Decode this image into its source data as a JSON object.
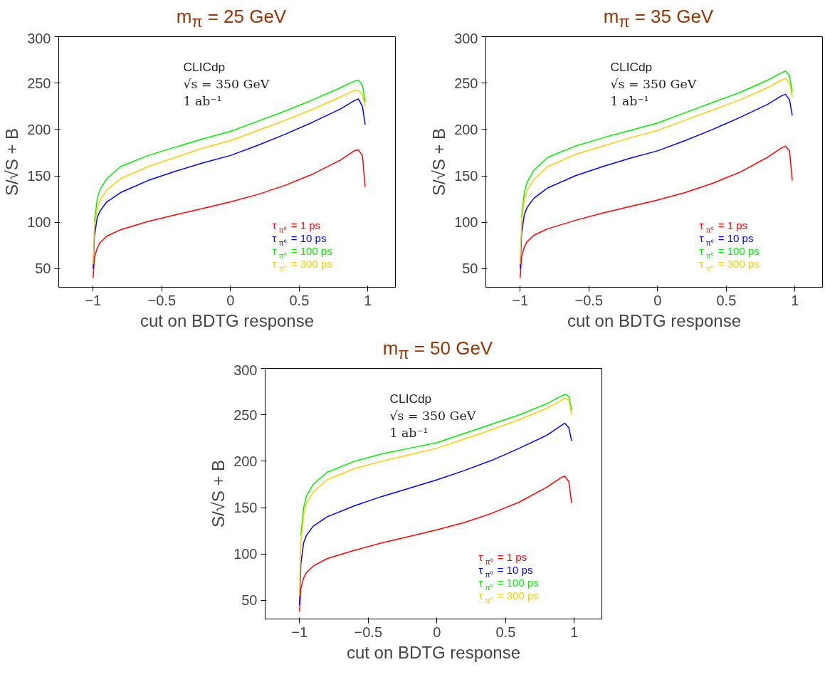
{
  "chart_data": [
    {
      "type": "line",
      "title": "m$_{π}$ = 25 GeV",
      "xlabel": "cut on BDTG response",
      "ylabel": "S/√S + B",
      "annotations": [
        "CLICdp",
        "√s = 350 GeV",
        "1 ab⁻¹"
      ],
      "xlim": [
        -1.25,
        1.2
      ],
      "ylim": [
        30,
        300
      ],
      "xticks": [
        -1,
        -0.5,
        0,
        0.5,
        1
      ],
      "yticks": [
        50,
        100,
        150,
        200,
        250,
        300
      ],
      "grid": false,
      "legend": "bottom",
      "x": [
        -1,
        -0.99,
        -0.97,
        -0.95,
        -0.9,
        -0.8,
        -0.6,
        -0.4,
        -0.2,
        0,
        0.2,
        0.4,
        0.6,
        0.8,
        0.9,
        0.93,
        0.96,
        0.98
      ],
      "series": [
        {
          "name": "τ$_{π⁰}$ = 1 ps",
          "color": "#ff0000",
          "values": [
            40,
            62,
            72,
            78,
            85,
            92,
            101,
            108,
            115,
            122,
            130,
            140,
            152,
            167,
            177,
            178,
            172,
            138
          ]
        },
        {
          "name": "τ$_{π⁰}$ = 10 ps",
          "color": "#0000ff",
          "values": [
            50,
            85,
            105,
            112,
            122,
            132,
            145,
            155,
            164,
            172,
            183,
            195,
            208,
            222,
            231,
            233,
            225,
            205
          ]
        },
        {
          "name": "τ$_{π⁰}$ = 100 ps",
          "color": "#00ee00",
          "values": [
            null,
            100,
            125,
            135,
            147,
            160,
            172,
            181,
            190,
            198,
            209,
            220,
            232,
            245,
            252,
            253,
            248,
            230
          ]
        },
        {
          "name": "τ$_{π⁰}$ = 300 ps",
          "color": "#ffcc00",
          "values": [
            55,
            95,
            115,
            123,
            135,
            147,
            160,
            170,
            180,
            188,
            199,
            210,
            222,
            235,
            242,
            242,
            238,
            225
          ]
        }
      ]
    },
    {
      "type": "line",
      "title": "m$_{π}$ = 35 GeV",
      "xlabel": "cut on BDTG response",
      "ylabel": "S/√S + B",
      "annotations": [
        "CLICdp",
        "√s = 350 GeV",
        "1 ab⁻¹"
      ],
      "xlim": [
        -1.25,
        1.2
      ],
      "ylim": [
        30,
        300
      ],
      "xticks": [
        -1,
        -0.5,
        0,
        0.5,
        1
      ],
      "yticks": [
        50,
        100,
        150,
        200,
        250,
        300
      ],
      "grid": false,
      "legend": "bottom",
      "x": [
        -1,
        -0.99,
        -0.97,
        -0.95,
        -0.9,
        -0.8,
        -0.6,
        -0.4,
        -0.2,
        0,
        0.2,
        0.4,
        0.6,
        0.8,
        0.9,
        0.93,
        0.96,
        0.98
      ],
      "series": [
        {
          "name": "τ$_{π⁰}$ = 1 ps",
          "color": "#ff0000",
          "values": [
            40,
            63,
            73,
            79,
            86,
            93,
            102,
            110,
            117,
            124,
            132,
            142,
            154,
            170,
            180,
            182,
            177,
            145
          ]
        },
        {
          "name": "τ$_{π⁰}$ = 10 ps",
          "color": "#0000ff",
          "values": [
            50,
            88,
            108,
            116,
            126,
            137,
            150,
            160,
            169,
            177,
            188,
            200,
            213,
            227,
            236,
            238,
            232,
            215
          ]
        },
        {
          "name": "τ$_{π⁰}$ = 100 ps",
          "color": "#00ee00",
          "values": [
            null,
            105,
            132,
            143,
            156,
            170,
            182,
            191,
            199,
            207,
            218,
            229,
            240,
            253,
            261,
            263,
            258,
            240
          ]
        },
        {
          "name": "τ$_{π⁰}$ = 300 ps",
          "color": "#ffcc00",
          "values": [
            55,
            100,
            124,
            134,
            146,
            160,
            173,
            182,
            191,
            199,
            210,
            221,
            232,
            245,
            253,
            255,
            250,
            235
          ]
        }
      ]
    },
    {
      "type": "line",
      "title": "m$_{π}$ = 50 GeV",
      "xlabel": "cut on BDTG response",
      "ylabel": "S/√S + B",
      "annotations": [
        "CLICdp",
        "√s = 350 GeV",
        "1 ab⁻¹"
      ],
      "xlim": [
        -1.25,
        1.2
      ],
      "ylim": [
        30,
        300
      ],
      "xticks": [
        -1,
        -0.5,
        0,
        0.5,
        1
      ],
      "yticks": [
        50,
        100,
        150,
        200,
        250,
        300
      ],
      "grid": false,
      "legend": "bottom",
      "x": [
        -1,
        -0.99,
        -0.97,
        -0.95,
        -0.9,
        -0.8,
        -0.6,
        -0.4,
        -0.2,
        0,
        0.2,
        0.4,
        0.6,
        0.8,
        0.9,
        0.93,
        0.96,
        0.98
      ],
      "series": [
        {
          "name": "τ$_{π⁰}$ = 1 ps",
          "color": "#ff0000",
          "values": [
            38,
            63,
            74,
            80,
            87,
            95,
            104,
            112,
            119,
            126,
            134,
            144,
            156,
            172,
            182,
            184,
            178,
            155
          ]
        },
        {
          "name": "τ$_{π⁰}$ = 10 ps",
          "color": "#0000ff",
          "values": [
            45,
            90,
            112,
            120,
            130,
            140,
            152,
            162,
            171,
            180,
            190,
            201,
            214,
            228,
            238,
            241,
            236,
            222
          ]
        },
        {
          "name": "τ$_{π⁰}$ = 100 ps",
          "color": "#00ee00",
          "values": [
            null,
            120,
            150,
            162,
            175,
            188,
            200,
            208,
            214,
            220,
            230,
            240,
            250,
            262,
            270,
            272,
            270,
            255
          ]
        },
        {
          "name": "τ$_{π⁰}$ = 300 ps",
          "color": "#ffcc00",
          "values": [
            55,
            112,
            142,
            154,
            167,
            180,
            192,
            200,
            207,
            214,
            224,
            234,
            245,
            257,
            265,
            268,
            266,
            250
          ]
        }
      ]
    }
  ]
}
